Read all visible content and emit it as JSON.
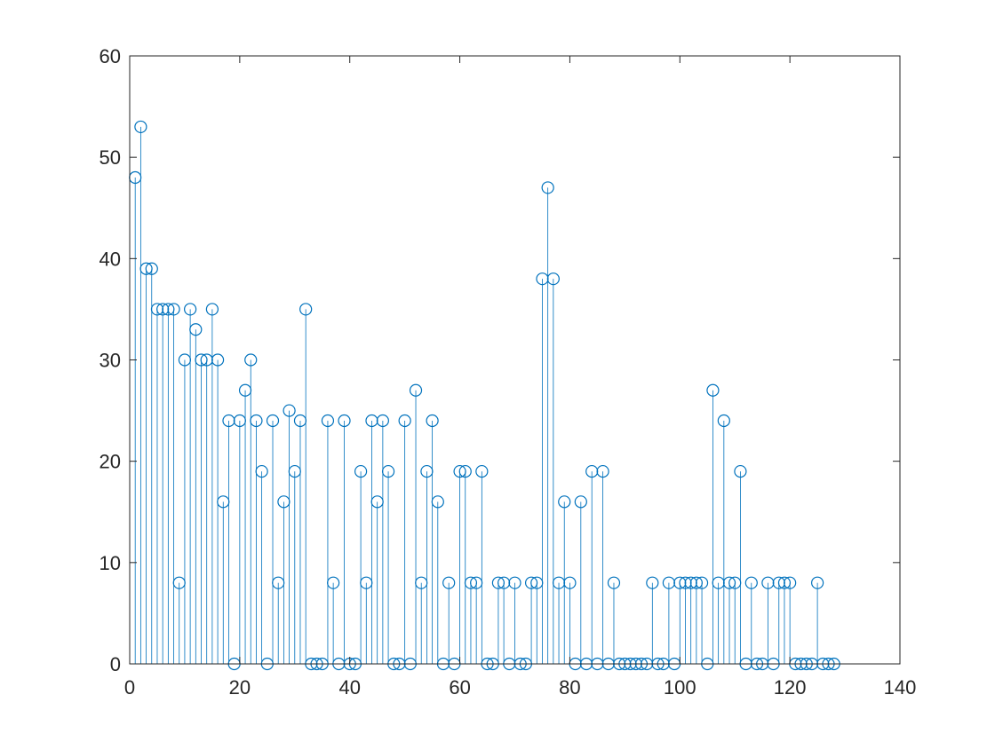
{
  "chart_data": {
    "type": "stem",
    "title": "",
    "xlabel": "",
    "ylabel": "",
    "xlim": [
      0,
      140
    ],
    "ylim": [
      0,
      60
    ],
    "x_ticks": [
      0,
      20,
      40,
      60,
      80,
      100,
      120,
      140
    ],
    "y_ticks": [
      0,
      10,
      20,
      30,
      40,
      50,
      60
    ],
    "grid": false,
    "marker": "open-circle",
    "series": [
      {
        "color": "#0072BD",
        "x": [
          1,
          2,
          3,
          4,
          5,
          6,
          7,
          8,
          9,
          10,
          11,
          12,
          13,
          14,
          15,
          16,
          17,
          18,
          19,
          20,
          21,
          22,
          23,
          24,
          25,
          26,
          27,
          28,
          29,
          30,
          31,
          32,
          33,
          34,
          35,
          36,
          37,
          38,
          39,
          40,
          41,
          42,
          43,
          44,
          45,
          46,
          47,
          48,
          49,
          50,
          51,
          52,
          53,
          54,
          55,
          56,
          57,
          58,
          59,
          60,
          61,
          62,
          63,
          64,
          65,
          66,
          67,
          68,
          69,
          70,
          71,
          72,
          73,
          74,
          75,
          76,
          77,
          78,
          79,
          80,
          81,
          82,
          83,
          84,
          85,
          86,
          87,
          88,
          89,
          90,
          91,
          92,
          93,
          94,
          95,
          96,
          97,
          98,
          99,
          100,
          101,
          102,
          103,
          104,
          105,
          106,
          107,
          108,
          109,
          110,
          111,
          112,
          113,
          114,
          115,
          116,
          117,
          118,
          119,
          120,
          121,
          122,
          123,
          124,
          125,
          126,
          127,
          128
        ],
        "y": [
          48,
          53,
          39,
          39,
          35,
          35,
          35,
          35,
          8,
          30,
          35,
          33,
          30,
          30,
          35,
          30,
          16,
          24,
          0,
          24,
          27,
          30,
          24,
          19,
          0,
          24,
          8,
          16,
          25,
          19,
          24,
          35,
          0,
          0,
          0,
          24,
          8,
          0,
          24,
          0,
          0,
          19,
          8,
          24,
          16,
          24,
          19,
          0,
          0,
          24,
          0,
          27,
          8,
          19,
          24,
          16,
          0,
          8,
          0,
          19,
          19,
          8,
          8,
          19,
          0,
          0,
          8,
          8,
          0,
          8,
          0,
          0,
          8,
          8,
          38,
          47,
          38,
          8,
          16,
          8,
          0,
          16,
          0,
          19,
          0,
          19,
          0,
          8,
          0,
          0,
          0,
          0,
          0,
          0,
          8,
          0,
          0,
          8,
          0,
          8,
          8,
          8,
          8,
          8,
          0,
          27,
          8,
          24,
          8,
          8,
          19,
          0,
          8,
          0,
          0,
          8,
          0,
          8,
          8,
          8,
          0,
          0,
          0,
          0,
          8,
          0,
          0,
          0
        ]
      }
    ]
  }
}
